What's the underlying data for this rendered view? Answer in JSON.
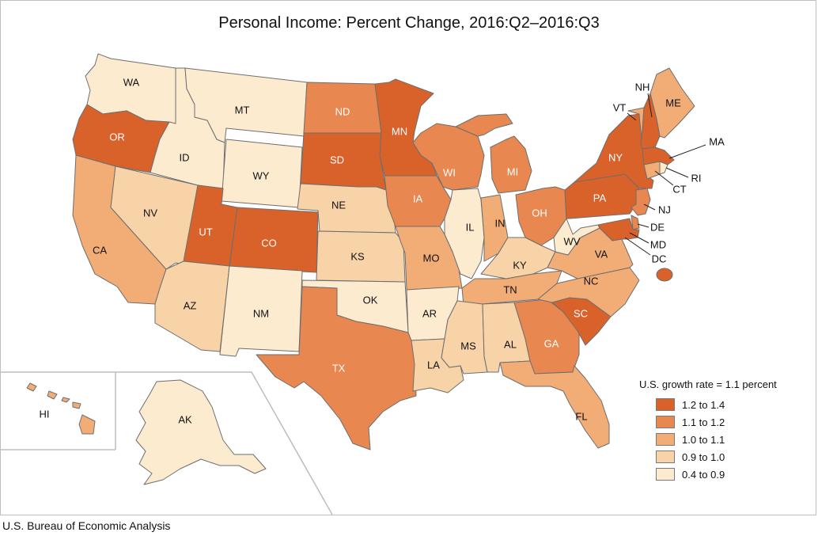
{
  "title": "Personal Income: Percent Change, 2016:Q2–2016:Q3",
  "source": "U.S. Bureau of Economic Analysis",
  "legend": {
    "title": "U.S. growth rate = 1.1 percent",
    "items": [
      {
        "label": "1.2 to 1.4",
        "color": "#d9622b"
      },
      {
        "label": "1.1 to 1.2",
        "color": "#e8874f"
      },
      {
        "label": "1.0 to 1.1",
        "color": "#f2ad76"
      },
      {
        "label": "0.9 to 1.0",
        "color": "#f9d3a8"
      },
      {
        "label": "0.4 to 0.9",
        "color": "#fdebd0"
      }
    ]
  },
  "states": [
    {
      "abbr": "WA",
      "class": 4
    },
    {
      "abbr": "OR",
      "class": 0
    },
    {
      "abbr": "ID",
      "class": 4
    },
    {
      "abbr": "MT",
      "class": 4
    },
    {
      "abbr": "WY",
      "class": 4
    },
    {
      "abbr": "ND",
      "class": 1
    },
    {
      "abbr": "SD",
      "class": 0
    },
    {
      "abbr": "MN",
      "class": 0
    },
    {
      "abbr": "NE",
      "class": 3
    },
    {
      "abbr": "CA",
      "class": 2
    },
    {
      "abbr": "NV",
      "class": 3
    },
    {
      "abbr": "UT",
      "class": 0
    },
    {
      "abbr": "CO",
      "class": 0
    },
    {
      "abbr": "AZ",
      "class": 3
    },
    {
      "abbr": "NM",
      "class": 4
    },
    {
      "abbr": "KS",
      "class": 3
    },
    {
      "abbr": "OK",
      "class": 4
    },
    {
      "abbr": "TX",
      "class": 1
    },
    {
      "abbr": "IA",
      "class": 1
    },
    {
      "abbr": "MO",
      "class": 2
    },
    {
      "abbr": "AR",
      "class": 4
    },
    {
      "abbr": "LA",
      "class": 3
    },
    {
      "abbr": "WI",
      "class": 1
    },
    {
      "abbr": "IL",
      "class": 4
    },
    {
      "abbr": "MI",
      "class": 1
    },
    {
      "abbr": "IN",
      "class": 2
    },
    {
      "abbr": "OH",
      "class": 1
    },
    {
      "abbr": "KY",
      "class": 3
    },
    {
      "abbr": "TN",
      "class": 2
    },
    {
      "abbr": "MS",
      "class": 3
    },
    {
      "abbr": "AL",
      "class": 3
    },
    {
      "abbr": "GA",
      "class": 1
    },
    {
      "abbr": "FL",
      "class": 2
    },
    {
      "abbr": "SC",
      "class": 0
    },
    {
      "abbr": "NC",
      "class": 2
    },
    {
      "abbr": "VA",
      "class": 2
    },
    {
      "abbr": "WV",
      "class": 4
    },
    {
      "abbr": "PA",
      "class": 0
    },
    {
      "abbr": "NY",
      "class": 0
    },
    {
      "abbr": "VT",
      "class": 2
    },
    {
      "abbr": "NH",
      "class": 0
    },
    {
      "abbr": "ME",
      "class": 2
    },
    {
      "abbr": "MA",
      "class": 0
    },
    {
      "abbr": "RI",
      "class": 4
    },
    {
      "abbr": "CT",
      "class": 2
    },
    {
      "abbr": "NJ",
      "class": 1
    },
    {
      "abbr": "DE",
      "class": 1
    },
    {
      "abbr": "MD",
      "class": 0
    },
    {
      "abbr": "DC",
      "class": 0
    },
    {
      "abbr": "AK",
      "class": 4
    },
    {
      "abbr": "HI",
      "class": 2
    }
  ]
}
